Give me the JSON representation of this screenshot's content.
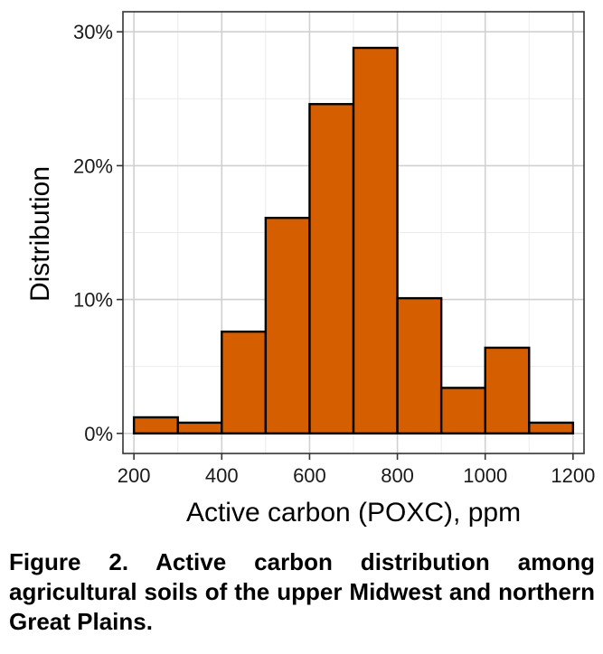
{
  "chart_data": {
    "type": "bar",
    "title": "",
    "xlabel": "Active carbon (POXC), ppm",
    "ylabel": "Distribution",
    "bins": [
      [
        200,
        300
      ],
      [
        300,
        400
      ],
      [
        400,
        500
      ],
      [
        500,
        600
      ],
      [
        600,
        700
      ],
      [
        700,
        800
      ],
      [
        800,
        900
      ],
      [
        900,
        1000
      ],
      [
        1000,
        1100
      ],
      [
        1100,
        1200
      ]
    ],
    "values": [
      1.2,
      0.8,
      7.6,
      16.1,
      24.6,
      28.8,
      10.1,
      3.4,
      6.4,
      0.8
    ],
    "xlim": [
      175,
      1225
    ],
    "ylim": [
      -1.5,
      31.5
    ],
    "xticks": [
      200,
      400,
      600,
      800,
      1000,
      1200
    ],
    "xtick_labels": [
      "200",
      "400",
      "600",
      "800",
      "1000",
      "1200"
    ],
    "yticks": [
      0,
      10,
      20,
      30
    ],
    "ytick_labels": [
      "0%",
      "10%",
      "20%",
      "30%"
    ],
    "grid": true,
    "bar_color": "#d45e00",
    "bar_edge_color": "#000000"
  },
  "caption": "Figure 2. Active carbon distribution among agricultural soils of the upper Midwest and northern Great Plains."
}
